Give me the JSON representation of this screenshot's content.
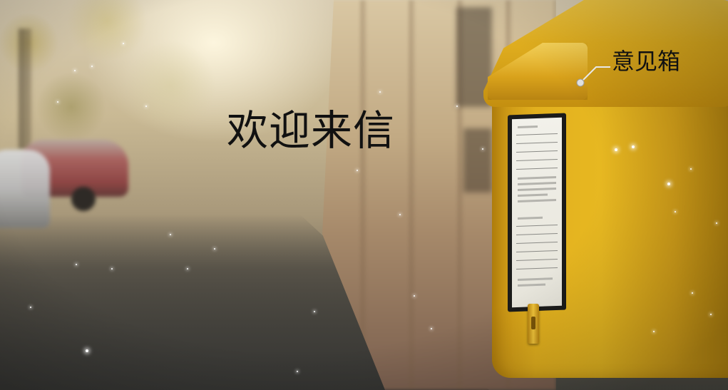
{
  "slide": {
    "headline": "欢迎来信",
    "callout_label": "意见箱"
  },
  "colors": {
    "mailbox_yellow": "#e2b01e",
    "text": "#111111",
    "callout_line": "#e8e8e8"
  },
  "icons": {
    "sparkles": "sparkle-icon"
  }
}
